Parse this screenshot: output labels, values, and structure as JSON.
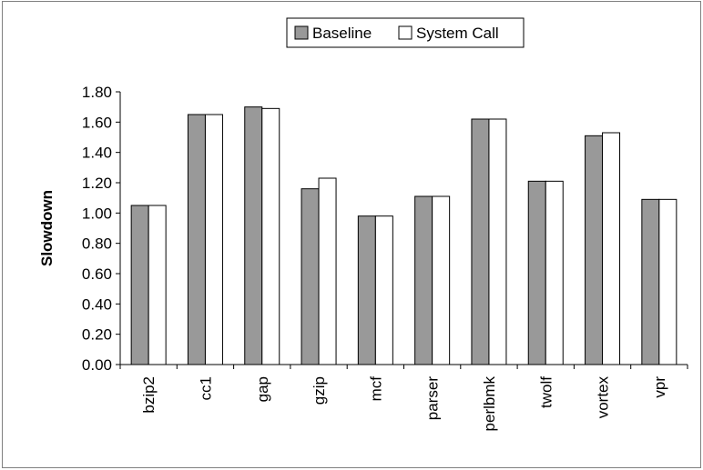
{
  "chart_data": {
    "type": "bar",
    "categories": [
      "bzip2",
      "cc1",
      "gap",
      "gzip",
      "mcf",
      "parser",
      "perlbmk",
      "twolf",
      "vortex",
      "vpr"
    ],
    "series": [
      {
        "name": "Baseline",
        "values": [
          1.05,
          1.65,
          1.7,
          1.16,
          0.98,
          1.11,
          1.62,
          1.21,
          1.51,
          1.09
        ],
        "color": "#999999"
      },
      {
        "name": "System Call",
        "values": [
          1.05,
          1.65,
          1.69,
          1.23,
          0.98,
          1.11,
          1.62,
          1.21,
          1.53,
          1.09
        ],
        "color": "#ffffff"
      }
    ],
    "title": "",
    "xlabel": "",
    "ylabel": "Slowdown",
    "ylim": [
      0,
      1.8
    ],
    "yticks": [
      "0.00",
      "0.20",
      "0.40",
      "0.60",
      "0.80",
      "1.00",
      "1.20",
      "1.40",
      "1.60",
      "1.80"
    ],
    "grid": false,
    "legend": "top-center",
    "frame_color": "#808080"
  }
}
